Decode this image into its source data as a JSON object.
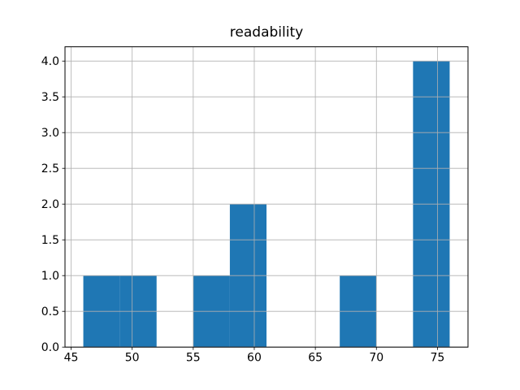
{
  "figure": {
    "background_color": "#ffffff"
  },
  "chart_data": {
    "type": "bar",
    "chart_kind": "histogram",
    "title": "readability",
    "xlabel": "",
    "ylabel": "",
    "bin_edges": [
      46,
      49,
      52,
      55,
      58,
      61,
      64,
      67,
      70,
      73,
      76
    ],
    "counts": [
      1,
      1,
      0,
      1,
      2,
      0,
      0,
      1,
      0,
      4
    ],
    "xlim": [
      44.5,
      77.5
    ],
    "ylim": [
      0,
      4.2
    ],
    "xticks": [
      45,
      50,
      55,
      60,
      65,
      70,
      75
    ],
    "xtick_labels": [
      "45",
      "50",
      "55",
      "60",
      "65",
      "70",
      "75"
    ],
    "yticks": [
      0,
      0.5,
      1,
      1.5,
      2,
      2.5,
      3,
      3.5,
      4
    ],
    "ytick_labels": [
      "0.0",
      "0.5",
      "1.0",
      "1.5",
      "2.0",
      "2.5",
      "3.0",
      "3.5",
      "4.0"
    ],
    "grid": true,
    "grid_above_bars": true,
    "legend": "none",
    "colors": {
      "bar_fill": "#1f77b4",
      "grid_line": "#b0b0b0",
      "axis_frame": "#000000",
      "tick_mark": "#000000",
      "tick_text": "#000000",
      "title_text": "#000000"
    }
  }
}
